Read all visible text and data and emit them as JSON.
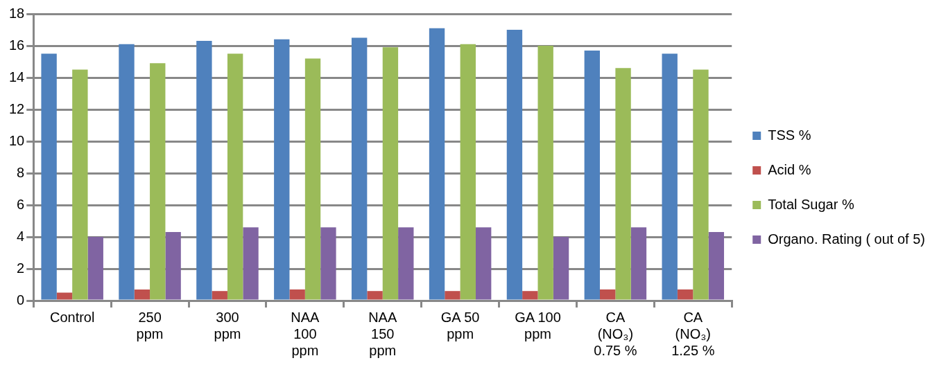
{
  "chart_data": {
    "type": "bar",
    "categories": [
      "Control",
      "250\nppm",
      "300\nppm",
      "NAA\n100\nppm",
      "NAA\n150\nppm",
      "GA 50\nppm",
      "GA 100\nppm",
      "CA\n(NO₃)\n0.75 %",
      "CA\n(NO₃)\n1.25 %"
    ],
    "series": [
      {
        "name": "TSS %",
        "color": "#4f81bd",
        "values": [
          15.5,
          16.1,
          16.3,
          16.4,
          16.5,
          17.1,
          17.0,
          15.7,
          15.5
        ]
      },
      {
        "name": "Acid %",
        "color": "#c0504d",
        "values": [
          0.5,
          0.7,
          0.6,
          0.7,
          0.6,
          0.6,
          0.6,
          0.7,
          0.7
        ]
      },
      {
        "name": "Total Sugar %",
        "color": "#9bbb59",
        "values": [
          14.5,
          14.9,
          15.5,
          15.2,
          15.9,
          16.1,
          16.0,
          14.6,
          14.5
        ]
      },
      {
        "name": "Organo. Rating ( out of 5)",
        "color": "#8064a2",
        "values": [
          4.0,
          4.3,
          4.6,
          4.6,
          4.6,
          4.6,
          4.0,
          4.6,
          4.3
        ]
      }
    ],
    "ylim": [
      0,
      18
    ],
    "yticks": [
      0,
      2,
      4,
      6,
      8,
      10,
      12,
      14,
      16,
      18
    ],
    "grid": "y",
    "legend": "right"
  }
}
